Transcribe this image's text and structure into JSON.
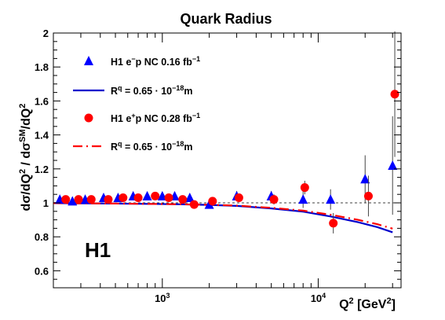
{
  "chart_data": {
    "type": "scatter",
    "title": "Quark Radius",
    "ylabel_parts": [
      "dσ/dQ",
      "2",
      " / dσ",
      "SM",
      "/dQ",
      "2"
    ],
    "xlabel_parts": [
      "Q",
      "2",
      " [GeV",
      "2",
      "]"
    ],
    "x_scale": "log",
    "xlim": [
      200,
      34000
    ],
    "ylim": [
      0.5,
      2.0
    ],
    "y_ticks": [
      "0.6",
      "0.8",
      "1",
      "1.2",
      "1.4",
      "1.6",
      "1.8",
      "2"
    ],
    "x_ticks": [
      {
        "value": 1000,
        "base": "10",
        "exp": "3"
      },
      {
        "value": 10000,
        "base": "10",
        "exp": "4"
      }
    ],
    "reference_line": 1.0,
    "experiment_label": "H1",
    "series": [
      {
        "name": "H1 e⁻p NC 0.16 fb⁻¹",
        "legend_parts": [
          "H1 e",
          "−",
          "p NC 0.16 fb",
          "−1"
        ],
        "marker": "triangle",
        "color": "#0000ff",
        "points": [
          {
            "x": 220,
            "y": 1.02,
            "err": 0.01
          },
          {
            "x": 265,
            "y": 1.01,
            "err": 0.01
          },
          {
            "x": 320,
            "y": 1.02,
            "err": 0.01
          },
          {
            "x": 420,
            "y": 1.03,
            "err": 0.01
          },
          {
            "x": 520,
            "y": 1.03,
            "err": 0.01
          },
          {
            "x": 650,
            "y": 1.04,
            "err": 0.01
          },
          {
            "x": 800,
            "y": 1.04,
            "err": 0.02
          },
          {
            "x": 1000,
            "y": 1.04,
            "err": 0.02
          },
          {
            "x": 1200,
            "y": 1.04,
            "err": 0.02
          },
          {
            "x": 1500,
            "y": 1.03,
            "err": 0.02
          },
          {
            "x": 2000,
            "y": 0.99,
            "err": 0.02
          },
          {
            "x": 3000,
            "y": 1.04,
            "err": 0.03
          },
          {
            "x": 5000,
            "y": 1.04,
            "err": 0.03
          },
          {
            "x": 8000,
            "y": 1.02,
            "err": 0.05
          },
          {
            "x": 12000,
            "y": 1.02,
            "err": 0.06
          },
          {
            "x": 20000,
            "y": 1.14,
            "err": 0.14
          },
          {
            "x": 30000,
            "y": 1.22,
            "err": 0.29
          }
        ]
      },
      {
        "name": "H1 e⁺p NC 0.28 fb⁻¹",
        "legend_parts": [
          "H1 e",
          "+",
          "p NC 0.28 fb",
          "−1"
        ],
        "marker": "circle",
        "color": "#ff0000",
        "points": [
          {
            "x": 240,
            "y": 1.02,
            "err": 0.01
          },
          {
            "x": 290,
            "y": 1.02,
            "err": 0.01
          },
          {
            "x": 350,
            "y": 1.02,
            "err": 0.01
          },
          {
            "x": 450,
            "y": 1.02,
            "err": 0.01
          },
          {
            "x": 560,
            "y": 1.03,
            "err": 0.01
          },
          {
            "x": 700,
            "y": 1.03,
            "err": 0.01
          },
          {
            "x": 900,
            "y": 1.04,
            "err": 0.02
          },
          {
            "x": 1100,
            "y": 1.03,
            "err": 0.02
          },
          {
            "x": 1350,
            "y": 1.02,
            "err": 0.02
          },
          {
            "x": 1600,
            "y": 0.99,
            "err": 0.02
          },
          {
            "x": 2100,
            "y": 1.01,
            "err": 0.02
          },
          {
            "x": 3100,
            "y": 1.03,
            "err": 0.02
          },
          {
            "x": 5200,
            "y": 1.02,
            "err": 0.03
          },
          {
            "x": 8200,
            "y": 1.09,
            "err": 0.04
          },
          {
            "x": 12500,
            "y": 0.88,
            "err": 0.06
          },
          {
            "x": 21000,
            "y": 1.04,
            "err": 0.12
          },
          {
            "x": 31000,
            "y": 1.64,
            "err": 0.37
          }
        ]
      }
    ],
    "fits": [
      {
        "name": "Rq = 0.65 · 10⁻¹⁸m (e⁻p)",
        "legend_parts": [
          "R",
          "q",
          " = 0.65 · 10",
          "−18",
          "m"
        ],
        "style": "solid",
        "color": "#0000cc",
        "x": [
          200,
          300,
          500,
          800,
          1200,
          2000,
          3000,
          5000,
          8000,
          12000,
          18000,
          24000,
          30000
        ],
        "y": [
          0.998,
          0.997,
          0.996,
          0.994,
          0.992,
          0.988,
          0.982,
          0.967,
          0.948,
          0.92,
          0.886,
          0.857,
          0.827
        ]
      },
      {
        "name": "Rq = 0.65 · 10⁻¹⁸m (e⁺p)",
        "legend_parts": [
          "R",
          "q",
          " = 0.65 · 10",
          "−18",
          "m"
        ],
        "style": "dash",
        "color": "#ff0000",
        "x": [
          200,
          300,
          500,
          800,
          1200,
          2000,
          3000,
          5000,
          8000,
          12000,
          18000,
          24000,
          30000
        ],
        "y": [
          0.998,
          0.997,
          0.996,
          0.994,
          0.992,
          0.989,
          0.984,
          0.971,
          0.954,
          0.93,
          0.9,
          0.874,
          0.848
        ]
      }
    ]
  }
}
